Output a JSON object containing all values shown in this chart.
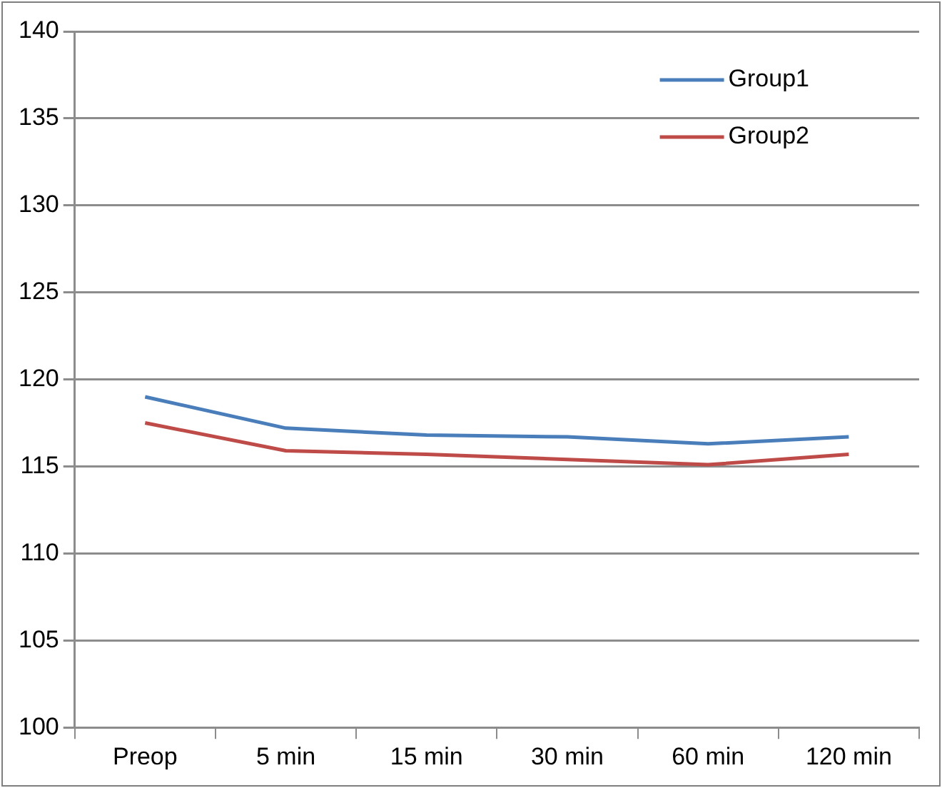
{
  "chart_data": {
    "type": "line",
    "categories": [
      "Preop",
      "5 min",
      "15 min",
      "30 min",
      "60 min",
      "120 min"
    ],
    "series": [
      {
        "name": "Group1",
        "color": "#4a7ebb",
        "values": [
          119.0,
          117.2,
          116.8,
          116.7,
          116.3,
          116.7
        ]
      },
      {
        "name": "Group2",
        "color": "#be4b48",
        "values": [
          117.5,
          115.9,
          115.7,
          115.4,
          115.1,
          115.7
        ]
      }
    ],
    "ylim": [
      100,
      140
    ],
    "yticks": [
      100,
      105,
      110,
      115,
      120,
      125,
      130,
      135,
      140
    ],
    "grid": "y",
    "legend": "top right",
    "marker": "none",
    "line_style": "solid"
  }
}
